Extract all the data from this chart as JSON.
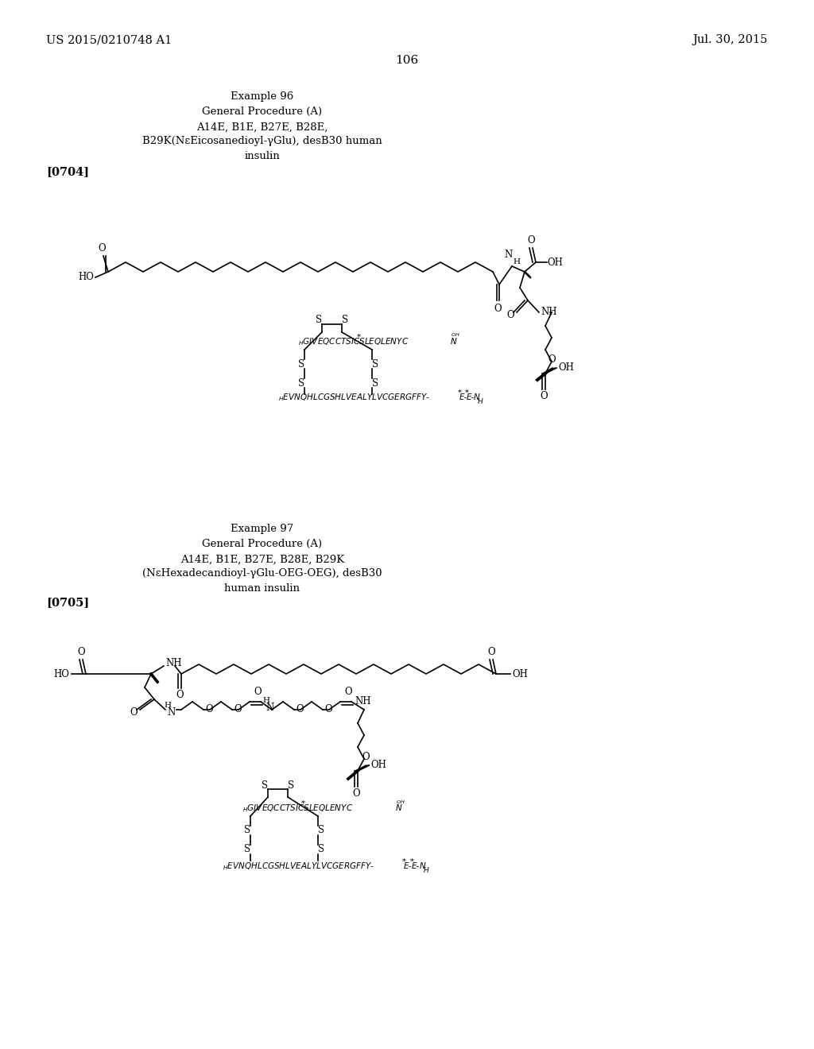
{
  "background_color": "#ffffff",
  "page_number": "106",
  "header_left": "US 2015/0210748 A1",
  "header_right": "Jul. 30, 2015",
  "example96_title": "Example 96",
  "example96_proc": "General Procedure (A)",
  "example96_desc_line1": "A14E, B1E, B27E, B28E,",
  "example96_desc_line2": "B29K(NεEicosanedioyl-γGlu), desB30 human",
  "example96_desc_line3": "insulin",
  "example96_tag": "[0704]",
  "example97_title": "Example 97",
  "example97_proc": "General Procedure (A)",
  "example97_desc_line1": "A14E, B1E, B27E, B28E, B29K",
  "example97_desc_line2": "(NεHexadecandioyl-γGlu-OEG-OEG), desB30",
  "example97_desc_line3": "human insulin",
  "example97_tag": "[0705]"
}
